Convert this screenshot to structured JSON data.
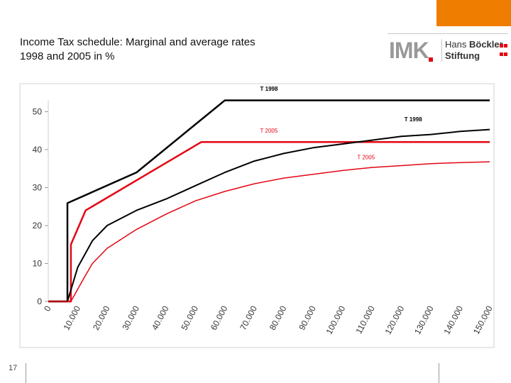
{
  "title_line1": "Income Tax schedule: Marginal and average rates",
  "title_line2": "1998 and 2005 in %",
  "logo": {
    "imk": "IMK",
    "foundation_line1_a": "Hans",
    "foundation_line1_b": "Böckler",
    "foundation_line2": "Stiftung"
  },
  "page_number": "17",
  "colors": {
    "accent": "#ef7d00",
    "t1998": "#000000",
    "t2005": "#e30613"
  },
  "chart_data": {
    "type": "line",
    "title": "",
    "xlabel": "",
    "ylabel": "",
    "xlim": [
      0,
      150000
    ],
    "ylim": [
      0,
      53
    ],
    "yticks": [
      0,
      10,
      20,
      30,
      40,
      50
    ],
    "xtick_labels": [
      "0",
      "10.000",
      "20.000",
      "30.000",
      "40.000",
      "50.000",
      "60.000",
      "70.000",
      "80.000",
      "90.000",
      "100.000",
      "110.000",
      "120.000",
      "130.000",
      "140.000",
      "150.000"
    ],
    "xticks": [
      0,
      10000,
      20000,
      30000,
      40000,
      50000,
      60000,
      70000,
      80000,
      90000,
      100000,
      110000,
      120000,
      130000,
      140000,
      150000
    ],
    "series": [
      {
        "name": "T 1998",
        "kind": "marginal",
        "color": "#000000",
        "width": 2.5,
        "x": [
          0,
          6500,
          6500,
          30000,
          60000,
          150000
        ],
        "y": [
          0,
          0,
          25.9,
          34,
          53,
          53
        ]
      },
      {
        "name": "T 2005",
        "kind": "marginal",
        "color": "#e30613",
        "width": 2.5,
        "x": [
          0,
          7700,
          7700,
          12700,
          52000,
          150000
        ],
        "y": [
          0,
          0,
          15,
          24,
          42,
          42
        ]
      },
      {
        "name": "T 1998",
        "kind": "average",
        "color": "#000000",
        "width": 2,
        "x": [
          0,
          6500,
          10000,
          15000,
          20000,
          30000,
          40000,
          50000,
          60000,
          70000,
          80000,
          90000,
          100000,
          110000,
          120000,
          130000,
          140000,
          150000
        ],
        "y": [
          0,
          0,
          9,
          16,
          20,
          24,
          27,
          30.5,
          34,
          37,
          39,
          40.5,
          41.5,
          42.5,
          43.5,
          44,
          44.8,
          45.3
        ]
      },
      {
        "name": "T 2005",
        "kind": "average",
        "color": "#e30613",
        "width": 1.5,
        "x": [
          0,
          7700,
          12000,
          15000,
          20000,
          30000,
          40000,
          50000,
          60000,
          70000,
          80000,
          90000,
          100000,
          110000,
          120000,
          130000,
          140000,
          150000
        ],
        "y": [
          0,
          0,
          6,
          10,
          14,
          19,
          23,
          26.5,
          29,
          31,
          32.5,
          33.5,
          34.5,
          35.3,
          35.8,
          36.3,
          36.6,
          36.8
        ]
      }
    ],
    "annotations": [
      {
        "text": "T 1998",
        "x": 72000,
        "y": 55.5,
        "color": "#000000",
        "bold": true
      },
      {
        "text": "T 1998",
        "x": 121000,
        "y": 47.5,
        "color": "#000000",
        "bold": true
      },
      {
        "text": "T 2005",
        "x": 72000,
        "y": 44.5,
        "color": "#e30613",
        "bold": false
      },
      {
        "text": "T 2005",
        "x": 105000,
        "y": 37.5,
        "color": "#e30613",
        "bold": false
      }
    ]
  }
}
